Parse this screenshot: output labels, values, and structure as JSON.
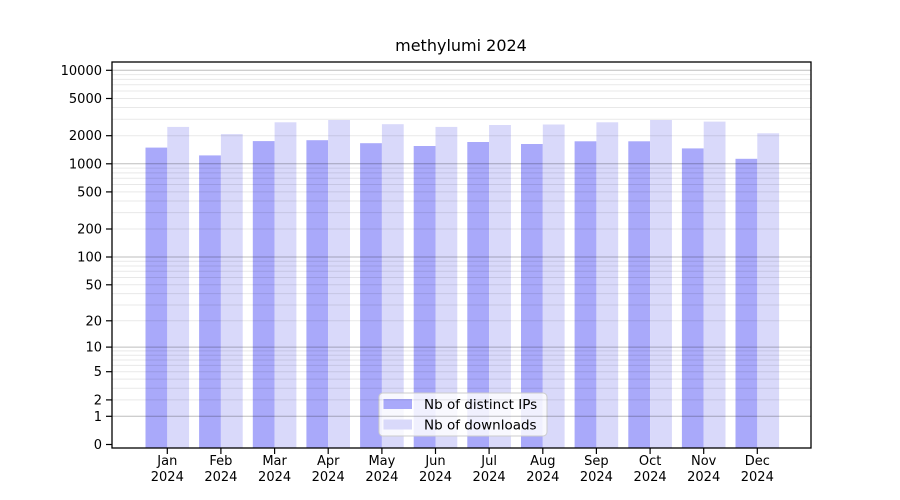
{
  "figure": {
    "title": "methylumi 2024"
  },
  "chart_data": {
    "type": "bar",
    "title": "methylumi 2024",
    "categories": [
      "Jan",
      "Feb",
      "Mar",
      "Apr",
      "May",
      "Jun",
      "Jul",
      "Aug",
      "Sep",
      "Oct",
      "Nov",
      "Dec"
    ],
    "year_label": "2024",
    "series": [
      {
        "name": "Nb of distinct IPs",
        "color": "#a9a9fa",
        "values": [
          1490,
          1230,
          1750,
          1790,
          1660,
          1550,
          1710,
          1630,
          1740,
          1740,
          1460,
          1130
        ]
      },
      {
        "name": "Nb of downloads",
        "color": "#d9d9fa",
        "values": [
          2480,
          2080,
          2780,
          2940,
          2650,
          2480,
          2600,
          2630,
          2780,
          2940,
          2830,
          2120
        ]
      }
    ],
    "y_scale": "log1p",
    "y_ticks": [
      0,
      1,
      2,
      5,
      10,
      20,
      50,
      100,
      200,
      500,
      1000,
      2000,
      5000,
      10000
    ],
    "ylim": [
      0,
      12000
    ],
    "xlabel": "",
    "ylabel": "",
    "grid": true,
    "legend_position": "bottom-center",
    "colors": {
      "axis": "#000000",
      "grid_major": "rgba(0,0,0,0.26)",
      "grid_minor": "rgba(0,0,0,0.09)",
      "legend_border": "#cccccc",
      "legend_bg": "rgba(255,255,255,0.82)"
    }
  }
}
